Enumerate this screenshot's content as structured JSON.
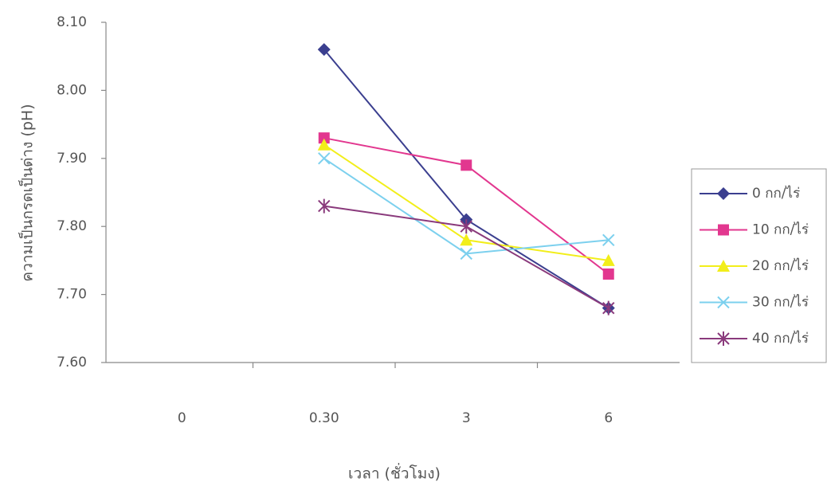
{
  "chart_data": {
    "type": "line",
    "x_label": "เวลา (ชั่วโมง)",
    "y_label": "ความเป็นกรดเป็นด่าง (pH)",
    "categories": [
      "0",
      "0.30",
      "3",
      "6"
    ],
    "ylim": [
      7.6,
      8.1
    ],
    "yticks": [
      {
        "value": 7.6,
        "label": "7.60"
      },
      {
        "value": 7.7,
        "label": "7.70"
      },
      {
        "value": 7.8,
        "label": "7.80"
      },
      {
        "value": 7.9,
        "label": "7.90"
      },
      {
        "value": 8.0,
        "label": "8.00"
      },
      {
        "value": 8.1,
        "label": "8.10"
      }
    ],
    "grid": false,
    "legend": "right",
    "series": [
      {
        "name": "0 กก/ไร่",
        "color": "#3b3f8f",
        "marker": "diamond",
        "values": [
          null,
          8.06,
          7.81,
          7.68
        ]
      },
      {
        "name": "10 กก/ไร่",
        "color": "#e2378f",
        "marker": "square",
        "values": [
          null,
          7.93,
          7.89,
          7.73
        ]
      },
      {
        "name": "20 กก/ไร่",
        "color": "#f2ee1a",
        "marker": "triangle",
        "values": [
          null,
          7.92,
          7.78,
          7.75
        ]
      },
      {
        "name": "30 กก/ไร่",
        "color": "#7cd0ee",
        "marker": "x",
        "values": [
          null,
          7.9,
          7.76,
          7.78
        ]
      },
      {
        "name": "40 กก/ไร่",
        "color": "#8a3a7c",
        "marker": "star",
        "values": [
          null,
          7.83,
          7.8,
          7.68
        ]
      }
    ]
  }
}
